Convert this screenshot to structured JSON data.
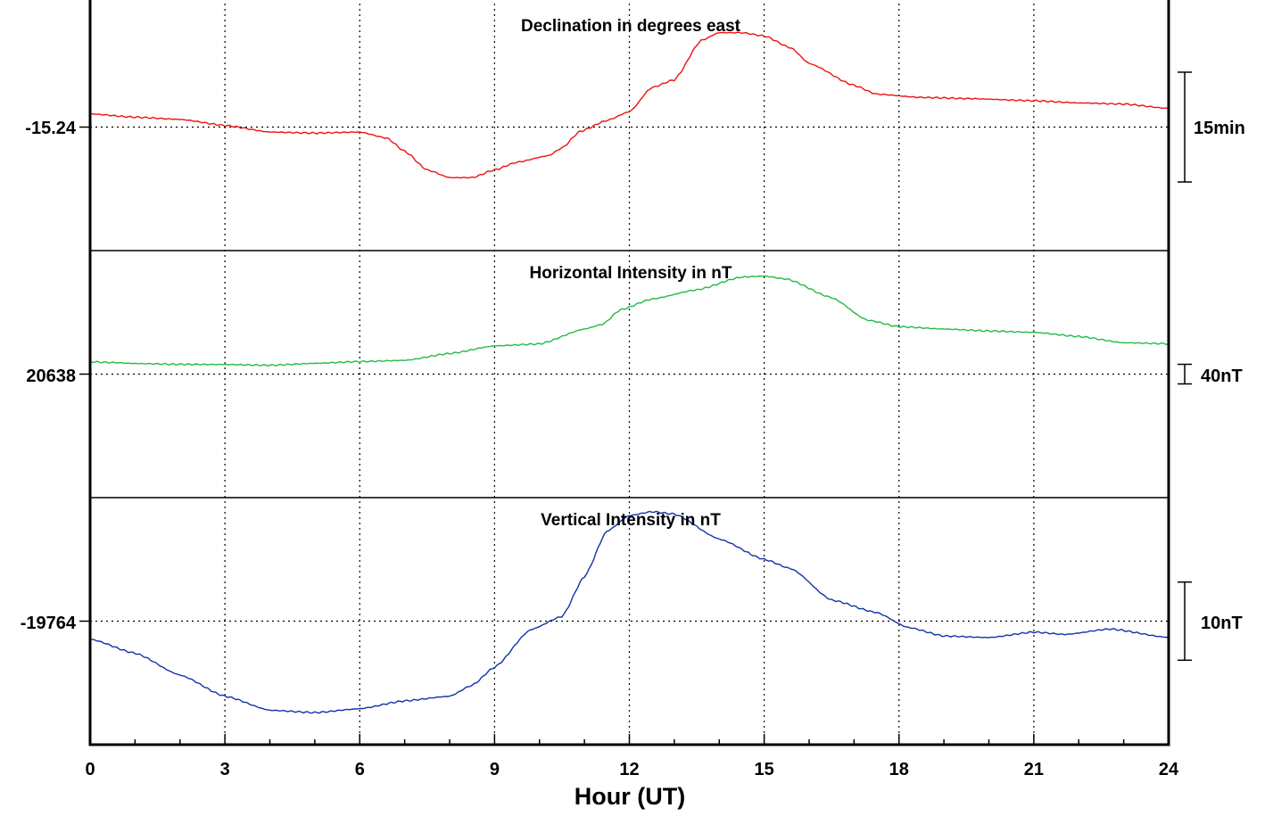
{
  "chart_data": {
    "type": "line",
    "x": {
      "label": "Hour (UT)",
      "range": [
        0,
        24
      ],
      "ticks": [
        0,
        3,
        6,
        9,
        12,
        15,
        18,
        21,
        24
      ],
      "minor_step": 1,
      "grid": "dotted"
    },
    "panels": [
      {
        "title": "Declination in degrees east",
        "color": "#ee1111",
        "reference_value": "-15.24",
        "scale_label": "15min",
        "y_units_per_panel": 22.5,
        "points": [
          [
            0,
            1.2
          ],
          [
            1,
            0.9
          ],
          [
            2,
            0.7
          ],
          [
            3,
            0.15
          ],
          [
            4,
            -0.45
          ],
          [
            5,
            -0.55
          ],
          [
            6,
            -0.45
          ],
          [
            6.6,
            -1.0
          ],
          [
            7,
            -2.2
          ],
          [
            7.5,
            -3.9
          ],
          [
            8,
            -4.6
          ],
          [
            8.5,
            -4.6
          ],
          [
            9,
            -3.9
          ],
          [
            9.5,
            -3.2
          ],
          [
            10.2,
            -2.6
          ],
          [
            10.5,
            -1.9
          ],
          [
            10.9,
            -0.4
          ],
          [
            11.5,
            0.6
          ],
          [
            12,
            1.4
          ],
          [
            12.5,
            3.6
          ],
          [
            13,
            4.3
          ],
          [
            13.6,
            7.9
          ],
          [
            14,
            8.6
          ],
          [
            14.5,
            8.6
          ],
          [
            15,
            8.3
          ],
          [
            15.6,
            7.2
          ],
          [
            16,
            5.8
          ],
          [
            17,
            3.8
          ],
          [
            17.5,
            3.0
          ],
          [
            18.5,
            2.7
          ],
          [
            19.5,
            2.6
          ],
          [
            21,
            2.4
          ],
          [
            22,
            2.2
          ],
          [
            23,
            2.1
          ],
          [
            24,
            1.7
          ]
        ]
      },
      {
        "title": "Horizontal Intensity in nT",
        "color": "#22bb44",
        "reference_value": "20638",
        "scale_label": "40nT",
        "y_units_per_panel": 126,
        "points": [
          [
            0,
            6.3
          ],
          [
            0.5,
            5.9
          ],
          [
            1,
            5.4
          ],
          [
            2,
            5.0
          ],
          [
            3,
            4.9
          ],
          [
            4,
            4.5
          ],
          [
            5,
            5.5
          ],
          [
            6,
            6.4
          ],
          [
            7,
            7.0
          ],
          [
            8,
            10.5
          ],
          [
            9,
            14.4
          ],
          [
            10,
            15.4
          ],
          [
            11,
            23.0
          ],
          [
            11.4,
            25.4
          ],
          [
            11.8,
            32.8
          ],
          [
            12.5,
            38.3
          ],
          [
            13.5,
            43.0
          ],
          [
            14.5,
            49.5
          ],
          [
            15,
            50.0
          ],
          [
            15.5,
            48.5
          ],
          [
            16.5,
            39.0
          ],
          [
            17.3,
            27.5
          ],
          [
            18,
            24.2
          ],
          [
            19,
            23.0
          ],
          [
            20,
            22.0
          ],
          [
            21,
            21.3
          ],
          [
            22,
            19.2
          ],
          [
            23,
            16.0
          ],
          [
            24,
            15.5
          ]
        ]
      },
      {
        "title": "Vertical Intensity in nT",
        "color": "#1133aa",
        "reference_value": "-19764",
        "scale_label": "10nT",
        "y_units_per_panel": 31.6,
        "points": [
          [
            0,
            -2.3
          ],
          [
            1,
            -4.1
          ],
          [
            2,
            -6.9
          ],
          [
            3,
            -9.6
          ],
          [
            4,
            -11.4
          ],
          [
            5,
            -11.7
          ],
          [
            6,
            -11.2
          ],
          [
            7,
            -10.2
          ],
          [
            8,
            -9.6
          ],
          [
            8.5,
            -8.2
          ],
          [
            9,
            -5.9
          ],
          [
            9.8,
            -1.1
          ],
          [
            10.5,
            0.6
          ],
          [
            11,
            5.7
          ],
          [
            11.5,
            11.5
          ],
          [
            12,
            13.5
          ],
          [
            12.5,
            14.0
          ],
          [
            13,
            13.7
          ],
          [
            14,
            10.5
          ],
          [
            15,
            7.9
          ],
          [
            15.6,
            6.7
          ],
          [
            16.5,
            2.7
          ],
          [
            17.5,
            1.1
          ],
          [
            18.2,
            -0.8
          ],
          [
            19,
            -1.9
          ],
          [
            20,
            -2.1
          ],
          [
            21,
            -1.4
          ],
          [
            21.7,
            -1.7
          ],
          [
            22.7,
            -1.0
          ],
          [
            24,
            -2.1
          ]
        ]
      }
    ]
  }
}
